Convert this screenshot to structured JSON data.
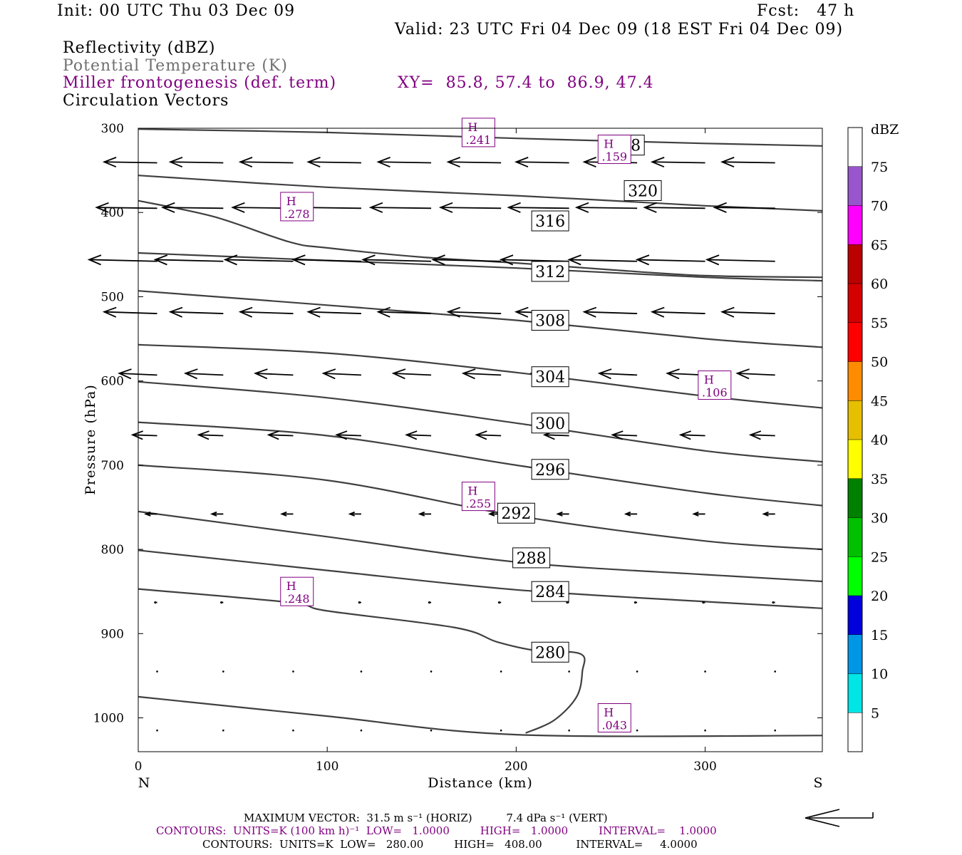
{
  "header": {
    "init": "Init: 00 UTC Thu 03 Dec 09",
    "fcst": "Fcst:   47 h",
    "valid": "Valid: 23 UTC Fri 04 Dec 09 (18 EST Fri 04 Dec 09)",
    "field1": "Reflectivity (dBZ)",
    "field2": "Potential Temperature (K)",
    "field3": "Miller frontogenesis (def. term)",
    "xy": "XY=  85.8, 57.4 to  86.9, 47.4",
    "field4": "Circulation Vectors"
  },
  "footer": {
    "max_vector": "MAXIMUM VECTOR:  31.5 m s⁻¹ (HORIZ)          7.4 dPa s⁻¹ (VERT)",
    "contours_purple": "CONTOURS:  UNITS=K (100 km h)⁻¹  LOW=   1.0000         HIGH=   1.0000         INTERVAL=    1.0000",
    "contours_black": "CONTOURS:  UNITS=K  LOW=   280.00         HIGH=   408.00          INTERVAL=     4.0000"
  },
  "colors": {
    "purple": "#800080",
    "theta_line": "#404040"
  },
  "chart_data": {
    "type": "line",
    "xlabel": "Distance (km)",
    "ylabel": "Pressure (hPa)",
    "x_end_labels": [
      "N",
      "S"
    ],
    "xlim": [
      0,
      362
    ],
    "ylim": [
      300,
      1040
    ],
    "x_ticks": [
      0,
      100,
      200,
      300
    ],
    "y_ticks": [
      300,
      400,
      500,
      600,
      700,
      800,
      900,
      1000
    ],
    "colorbar": {
      "unit": "dBZ",
      "levels": [
        5,
        10,
        15,
        20,
        25,
        30,
        35,
        40,
        45,
        50,
        55,
        60,
        65,
        70,
        75
      ],
      "colors": [
        "#ffffff",
        "#00e5e5",
        "#0096e6",
        "#0000dd",
        "#00ff00",
        "#00c000",
        "#008000",
        "#ffff00",
        "#e6bf00",
        "#ff8c00",
        "#ff0000",
        "#d40000",
        "#bb0000",
        "#ff00ff",
        "#9955cc",
        "#ffffff"
      ]
    },
    "theta_contours": [
      {
        "label": "328",
        "x": [
          0,
          100,
          200,
          300,
          362
        ],
        "p": [
          301,
          305,
          312,
          318,
          321
        ],
        "label_at": [
          258,
          320
        ]
      },
      {
        "label": "320",
        "x": [
          0,
          100,
          200,
          300,
          362
        ],
        "p": [
          356,
          370,
          380,
          392,
          398
        ],
        "label_at": [
          267,
          374
        ]
      },
      {
        "label": "316",
        "x": [
          0,
          40,
          80,
          100,
          150,
          200,
          250,
          300,
          362
        ],
        "p": [
          386,
          405,
          435,
          442,
          453,
          460,
          468,
          475,
          477
        ],
        "label_at": [
          218,
          410
        ]
      },
      {
        "label": "312",
        "x": [
          0,
          100,
          200,
          300,
          362
        ],
        "p": [
          448,
          457,
          466,
          477,
          481
        ],
        "label_at": [
          218,
          470
        ]
      },
      {
        "label": "308",
        "x": [
          0,
          100,
          200,
          300,
          362
        ],
        "p": [
          493,
          510,
          528,
          550,
          560
        ],
        "label_at": [
          218,
          528
        ]
      },
      {
        "label": "304",
        "x": [
          0,
          100,
          200,
          300,
          362
        ],
        "p": [
          557,
          567,
          590,
          618,
          632
        ],
        "label_at": [
          218,
          595
        ]
      },
      {
        "label": "300",
        "x": [
          0,
          100,
          200,
          300,
          362
        ],
        "p": [
          601,
          620,
          650,
          683,
          696
        ],
        "label_at": [
          218,
          650
        ]
      },
      {
        "label": "296",
        "x": [
          0,
          100,
          200,
          300,
          362
        ],
        "p": [
          649,
          665,
          700,
          733,
          748
        ],
        "label_at": [
          218,
          705
        ]
      },
      {
        "label": "292",
        "x": [
          0,
          100,
          200,
          300,
          362
        ],
        "p": [
          700,
          718,
          760,
          790,
          800
        ],
        "label_at": [
          200,
          757
        ]
      },
      {
        "label": "288",
        "x": [
          0,
          100,
          200,
          300,
          362
        ],
        "p": [
          755,
          785,
          815,
          830,
          838
        ],
        "label_at": [
          208,
          810
        ]
      },
      {
        "label": "284",
        "x": [
          0,
          100,
          200,
          300,
          362
        ],
        "p": [
          801,
          825,
          848,
          862,
          870
        ],
        "label_at": [
          218,
          850
        ]
      },
      {
        "label": "280",
        "x": [
          0,
          80,
          100,
          168,
          190,
          210,
          234,
          235,
          232,
          220,
          205
        ],
        "p": [
          847,
          863,
          873,
          893,
          910,
          920,
          924,
          945,
          975,
          1003,
          1018
        ],
        "label_at": [
          218,
          922
        ]
      },
      {
        "label": "",
        "x": [
          0,
          100,
          200,
          362
        ],
        "p": [
          975,
          998,
          1020,
          1021
        ],
        "label_at": null
      }
    ],
    "frontogenesis_maxima": [
      {
        "type": "H",
        "value": ".241",
        "x": 180,
        "p": 305
      },
      {
        "type": "H",
        "value": ".159",
        "x": 252,
        "p": 325
      },
      {
        "type": "H",
        "value": ".278",
        "x": 84,
        "p": 393
      },
      {
        "type": "H",
        "value": ".106",
        "x": 305,
        "p": 605
      },
      {
        "type": "H",
        "value": ".255",
        "x": 180,
        "p": 737
      },
      {
        "type": "H",
        "value": ".248",
        "x": 84,
        "p": 850
      },
      {
        "type": "H",
        "value": ".043",
        "x": 252,
        "p": 1000
      }
    ],
    "circulation_vectors": {
      "x": [
        10,
        45,
        82,
        118,
        155,
        192,
        228,
        264,
        300,
        337
      ],
      "rows": [
        {
          "p": 341,
          "len_km": 28,
          "dp": -1
        },
        {
          "p": 395,
          "len_km": 32,
          "dp": -1
        },
        {
          "p": 458,
          "len_km": 36,
          "dp": -2
        },
        {
          "p": 520,
          "len_km": 28,
          "dp": -2
        },
        {
          "p": 593,
          "len_km": 20,
          "dp": -2
        },
        {
          "p": 665,
          "len_km": 13,
          "dp": -1
        },
        {
          "p": 758,
          "len_km": 6,
          "dp": 0
        },
        {
          "p": 863,
          "len_km": 1,
          "dp": 0
        },
        {
          "p": 945,
          "len_km": 0.3,
          "dp": 0
        },
        {
          "p": 1015,
          "len_km": 0.3,
          "dp": 0
        }
      ]
    }
  }
}
